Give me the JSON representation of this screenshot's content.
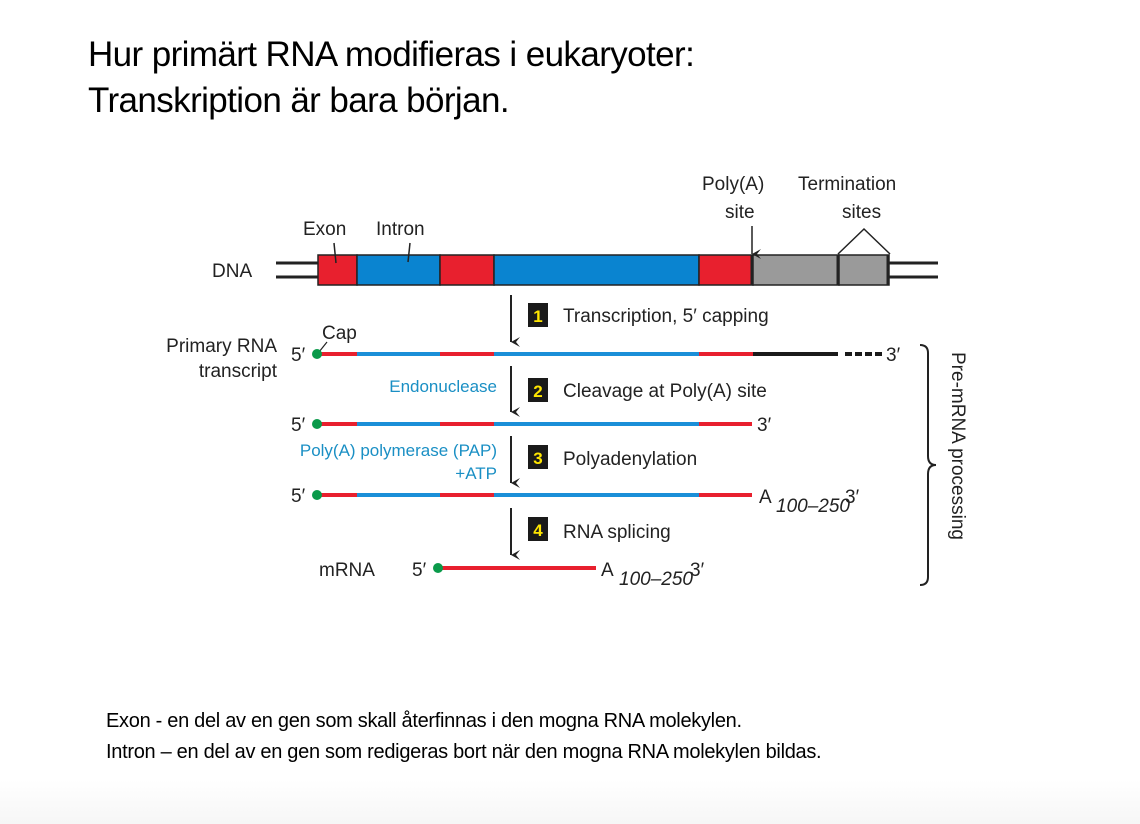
{
  "title": {
    "line1": "Hur primärt RNA modifieras i eukaryoter:",
    "line2": "Transkription är bara början."
  },
  "diagram": {
    "colors": {
      "exon": "#e8202e",
      "intron": "#0a84d0",
      "noncoding": "#9a9a9a",
      "cap": "#0a9a4a",
      "enzyme_text": "#1a8fc4"
    },
    "dna_label": "DNA",
    "exon_label": "Exon",
    "intron_label": "Intron",
    "polya_site_label_1": "Poly(A)",
    "polya_site_label_2": "site",
    "termination_label_1": "Termination",
    "termination_label_2": "sites",
    "primary_label_1": "Primary RNA",
    "primary_label_2": "transcript",
    "cap_label": "Cap",
    "five_prime": "5′",
    "three_prime": "3′",
    "poly_a": "A",
    "poly_a_range": "100–250",
    "mrna_label": "mRNA",
    "steps": [
      {
        "number": "1",
        "label": "Transcription, 5′ capping"
      },
      {
        "number": "2",
        "label": "Cleavage at Poly(A) site"
      },
      {
        "number": "3",
        "label": "Polyadenylation"
      },
      {
        "number": "4",
        "label": "RNA splicing"
      }
    ],
    "endonuclease": "Endonuclease",
    "pap_1": "Poly(A) polymerase (PAP)",
    "pap_2": "+ATP",
    "bracket_label": "Pre-mRNA processing"
  },
  "definitions": {
    "exon": "Exon -  en del av en gen som skall återfinnas i den mogna RNA molekylen.",
    "intron": "Intron – en del av en gen som redigeras bort när den mogna RNA molekylen bildas."
  }
}
